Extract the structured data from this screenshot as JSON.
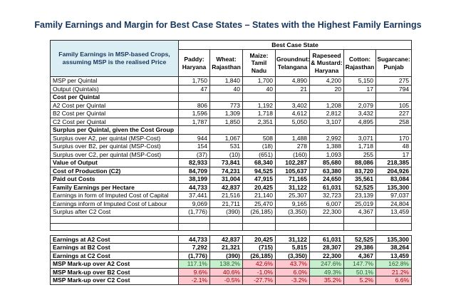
{
  "title": "Family Earnings and Margin for Best Case States – States with the Highest Family Earnings",
  "table": {
    "corner_label": "Family Earnings in MSP-based Crops, assuming MSP is the realised Price",
    "group_header": "Best Case State",
    "columns": [
      "Paddy: Haryana",
      "Wheat: Rajasthan",
      "Maize: Tamil Nadu",
      "Groundnut: Telangana",
      "Rapeseed & Mustard: Haryana",
      "Cotton: Rajasthan",
      "Sugarcane: Punjab"
    ],
    "rows": [
      {
        "label": "MSP per Quintal",
        "style": "normal",
        "values": [
          "1,750",
          "1,840",
          "1,700",
          "4,890",
          "4,200",
          "5,150",
          "275"
        ]
      },
      {
        "label": "Output (Quintals)",
        "style": "normal",
        "values": [
          "47",
          "40",
          "40",
          "21",
          "20",
          "17",
          "794"
        ]
      },
      {
        "label": "Cost per Quintal",
        "style": "section",
        "values": [
          "",
          "",
          "",
          "",
          "",
          "",
          ""
        ]
      },
      {
        "label": "A2 Cost per Quintal",
        "style": "normal",
        "values": [
          "806",
          "773",
          "1,192",
          "3,402",
          "1,208",
          "2,079",
          "105"
        ]
      },
      {
        "label": "B2 Cost per Quintal",
        "style": "normal",
        "values": [
          "1,596",
          "1,309",
          "1,718",
          "4,612",
          "2,812",
          "3,432",
          "227"
        ]
      },
      {
        "label": "C2 Cost per Quintal",
        "style": "normal",
        "values": [
          "1,787",
          "1,850",
          "2,351",
          "5,050",
          "3,107",
          "4,895",
          "258"
        ]
      },
      {
        "label": "Surplus per Quintal, given the Cost Group",
        "style": "section",
        "values": [
          "",
          "",
          "",
          "",
          "",
          "",
          ""
        ]
      },
      {
        "label": "Surplus over A2, per quintal (MSP-Cost)",
        "style": "normal",
        "values": [
          "944",
          "1,067",
          "508",
          "1,488",
          "2,992",
          "3,071",
          "170"
        ]
      },
      {
        "label": "Surplus over B2, per quintal  (MSP-Cost)",
        "style": "normal",
        "values": [
          "154",
          "531",
          "(18)",
          "278",
          "1,388",
          "1,718",
          "48"
        ]
      },
      {
        "label": "Surplus over C2, per quintal (MSP-Cost)",
        "style": "normal",
        "values": [
          "(37)",
          "(10)",
          "(651)",
          "(160)",
          "1,093",
          "255",
          "17"
        ]
      },
      {
        "label": "Value of Output",
        "style": "bold",
        "values": [
          "82,933",
          "73,841",
          "68,340",
          "102,287",
          "85,680",
          "88,086",
          "218,385"
        ]
      },
      {
        "label": "Cost of Production (C2)",
        "style": "bold",
        "values": [
          "84,709",
          "74,231",
          "94,525",
          "105,637",
          "63,380",
          "83,720",
          "204,926"
        ]
      },
      {
        "label": "Paid out Costs",
        "style": "bold",
        "values": [
          "38,199",
          "31,004",
          "47,915",
          "71,165",
          "24,650",
          "35,561",
          "83,084"
        ]
      },
      {
        "label": "Family Earnings per Hectare",
        "style": "bold",
        "values": [
          "44,733",
          "42,837",
          "20,425",
          "31,122",
          "61,031",
          "52,525",
          "135,300"
        ]
      },
      {
        "label": "Earnings in form of  Imputed Cost of Capital",
        "style": "normal",
        "values": [
          "37,441",
          "21,516",
          "21,140",
          "25,307",
          "32,723",
          "23,139",
          "97,037"
        ]
      },
      {
        "label": "Earnings inform of Imputed Cost of Labour",
        "style": "normal",
        "values": [
          "9,069",
          "21,711",
          "25,470",
          "9,165",
          "6,007",
          "25,019",
          "24,804"
        ]
      },
      {
        "label": "Surplus after C2 Cost",
        "style": "normal",
        "values": [
          "(1,776)",
          "(390)",
          "(26,185)",
          "(3,350)",
          "22,300",
          "4,367",
          "13,459"
        ]
      },
      {
        "label": "",
        "style": "empty",
        "values": [
          "",
          "",
          "",
          "",
          "",
          "",
          ""
        ]
      },
      {
        "label": "",
        "style": "empty",
        "values": [
          "",
          "",
          "",
          "",
          "",
          "",
          ""
        ]
      }
    ],
    "rows2": [
      {
        "label": "Earnings at A2 Cost",
        "style": "bold",
        "values": [
          "44,733",
          "42,837",
          "20,425",
          "31,122",
          "61,031",
          "52,525",
          "135,300"
        ]
      },
      {
        "label": "Earnings at B2 Cost",
        "style": "bold",
        "values": [
          "7,292",
          "21,321",
          "(715)",
          "5,815",
          "28,307",
          "29,386",
          "38,264"
        ]
      },
      {
        "label": "Earnings at C2 Cost",
        "style": "bold",
        "values": [
          "(1,776)",
          "(390)",
          "(26,185)",
          "(3,350)",
          "22,300",
          "4,367",
          "13,459"
        ]
      },
      {
        "label": "MSP Mark-up over A2 Cost",
        "style": "markup",
        "values": [
          "117.1%",
          "138.2%",
          "42.6%",
          "43.7%",
          "247.6%",
          "147.7%",
          "162.8%"
        ],
        "fills": [
          "green",
          "green",
          "red",
          "red",
          "green",
          "green",
          "green"
        ]
      },
      {
        "label": "MSP Mark-up over B2 Cost",
        "style": "markup",
        "values": [
          "9.6%",
          "40.6%",
          "-1.0%",
          "6.0%",
          "49.3%",
          "50.1%",
          "21.2%"
        ],
        "fills": [
          "red",
          "red",
          "red",
          "red",
          "green",
          "green",
          "red"
        ]
      },
      {
        "label": "MSP Mark-up over C2 Cost",
        "style": "markup",
        "values": [
          "-2.1%",
          "-0.5%",
          "-27.7%",
          "-3.2%",
          "35.2%",
          "5.2%",
          "6.6%"
        ],
        "fills": [
          "red",
          "red",
          "red",
          "red",
          "red",
          "red",
          "red"
        ]
      }
    ]
  },
  "colors": {
    "title_text": "#17365d",
    "header_fill": "#daeef3",
    "header_text": "#17365d",
    "positive_fill": "#c6efce",
    "positive_text": "#276127",
    "negative_fill": "#ffc7ce",
    "negative_text": "#9c0006",
    "grid_line": "#2f2f2f"
  }
}
